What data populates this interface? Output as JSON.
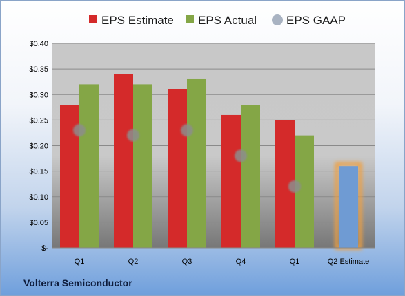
{
  "company": "Volterra Semiconductor",
  "chart_data": {
    "type": "bar",
    "categories": [
      "Q1",
      "Q2",
      "Q3",
      "Q4",
      "Q1",
      "Q2 Estimate"
    ],
    "series": [
      {
        "name": "EPS Estimate",
        "color": "#d42a2a",
        "values": [
          0.28,
          0.34,
          0.31,
          0.26,
          0.25,
          null
        ]
      },
      {
        "name": "EPS Actual",
        "color": "#84a646",
        "values": [
          0.32,
          0.32,
          0.33,
          0.28,
          0.22,
          0.16
        ]
      },
      {
        "name": "EPS GAAP",
        "color": "#a9b3c2",
        "marker": "circle",
        "values": [
          0.23,
          0.22,
          0.23,
          0.18,
          0.12,
          null
        ]
      }
    ],
    "highlighted_bar": {
      "category_index": 5,
      "color": "#6f9bd3",
      "glow": "#f0a040"
    },
    "y_ticks": [
      "$-",
      "$0.05",
      "$0.10",
      "$0.15",
      "$0.20",
      "$0.25",
      "$0.30",
      "$0.35",
      "$0.40"
    ],
    "ylim": [
      0,
      0.4
    ],
    "grid": true,
    "legend_position": "top"
  }
}
